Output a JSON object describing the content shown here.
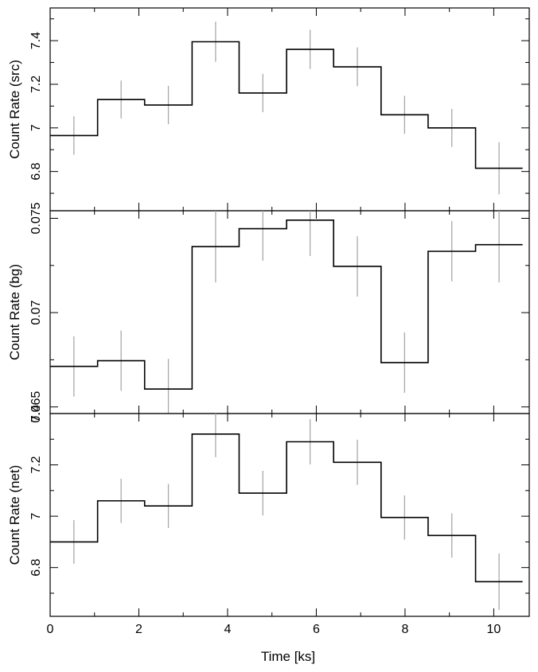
{
  "chart_data": [
    {
      "type": "line",
      "drawstyle": "steps",
      "ylabel": "Count Rate (src)",
      "xlim": [
        0,
        10.8
      ],
      "ylim": [
        6.62,
        7.55
      ],
      "yticks": [
        6.8,
        7,
        7.2,
        7.4
      ],
      "ytick_labels": [
        "6.8",
        "7",
        "7.2",
        "7.4"
      ],
      "series": [
        {
          "bin_edges": [
            0,
            1.07,
            2.13,
            3.2,
            4.26,
            5.33,
            6.39,
            7.46,
            8.52,
            9.59,
            10.65
          ],
          "values": [
            6.965,
            7.13,
            7.105,
            7.395,
            7.16,
            7.36,
            7.28,
            7.06,
            7.0,
            6.815
          ],
          "errors": [
            0.088,
            0.087,
            0.088,
            0.092,
            0.088,
            0.09,
            0.089,
            0.087,
            0.087,
            0.12
          ]
        }
      ]
    },
    {
      "type": "line",
      "drawstyle": "steps",
      "ylabel": "Count Rate (bg)",
      "xlim": [
        0,
        10.8
      ],
      "ylim": [
        0.06465,
        0.0754
      ],
      "yticks": [
        0.065,
        0.07,
        0.075
      ],
      "ytick_labels": [
        "0.065",
        "0.07",
        "0.075"
      ],
      "series": [
        {
          "bin_edges": [
            0,
            1.07,
            2.13,
            3.2,
            4.26,
            5.33,
            6.39,
            7.46,
            8.52,
            9.59,
            10.65
          ],
          "values": [
            0.06715,
            0.06745,
            0.06595,
            0.0735,
            0.07445,
            0.0749,
            0.07245,
            0.06735,
            0.07325,
            0.0736
          ],
          "errors": [
            0.0016,
            0.0016,
            0.0016,
            0.0019,
            0.0017,
            0.0019,
            0.0016,
            0.0016,
            0.0016,
            0.002
          ]
        }
      ]
    },
    {
      "type": "line",
      "drawstyle": "steps",
      "xlabel": "Time [ks]",
      "ylabel": "Count Rate (net)",
      "xlim": [
        0,
        10.8
      ],
      "ylim": [
        6.61,
        7.4
      ],
      "xticks": [
        0,
        2,
        4,
        6,
        8,
        10
      ],
      "xtick_labels": [
        "0",
        "2",
        "4",
        "6",
        "8",
        "10"
      ],
      "yticks": [
        6.8,
        7,
        7.2,
        7.4
      ],
      "ytick_labels": [
        "6.8",
        "7",
        "7.2",
        "7.4"
      ],
      "series": [
        {
          "bin_edges": [
            0,
            1.07,
            2.13,
            3.2,
            4.26,
            5.33,
            6.39,
            7.46,
            8.52,
            9.59,
            10.65
          ],
          "values": [
            6.9,
            7.06,
            7.04,
            7.32,
            7.09,
            7.29,
            7.21,
            6.995,
            6.925,
            6.745
          ],
          "errors": [
            0.085,
            0.086,
            0.086,
            0.09,
            0.087,
            0.088,
            0.088,
            0.086,
            0.086,
            0.11
          ]
        }
      ]
    }
  ]
}
